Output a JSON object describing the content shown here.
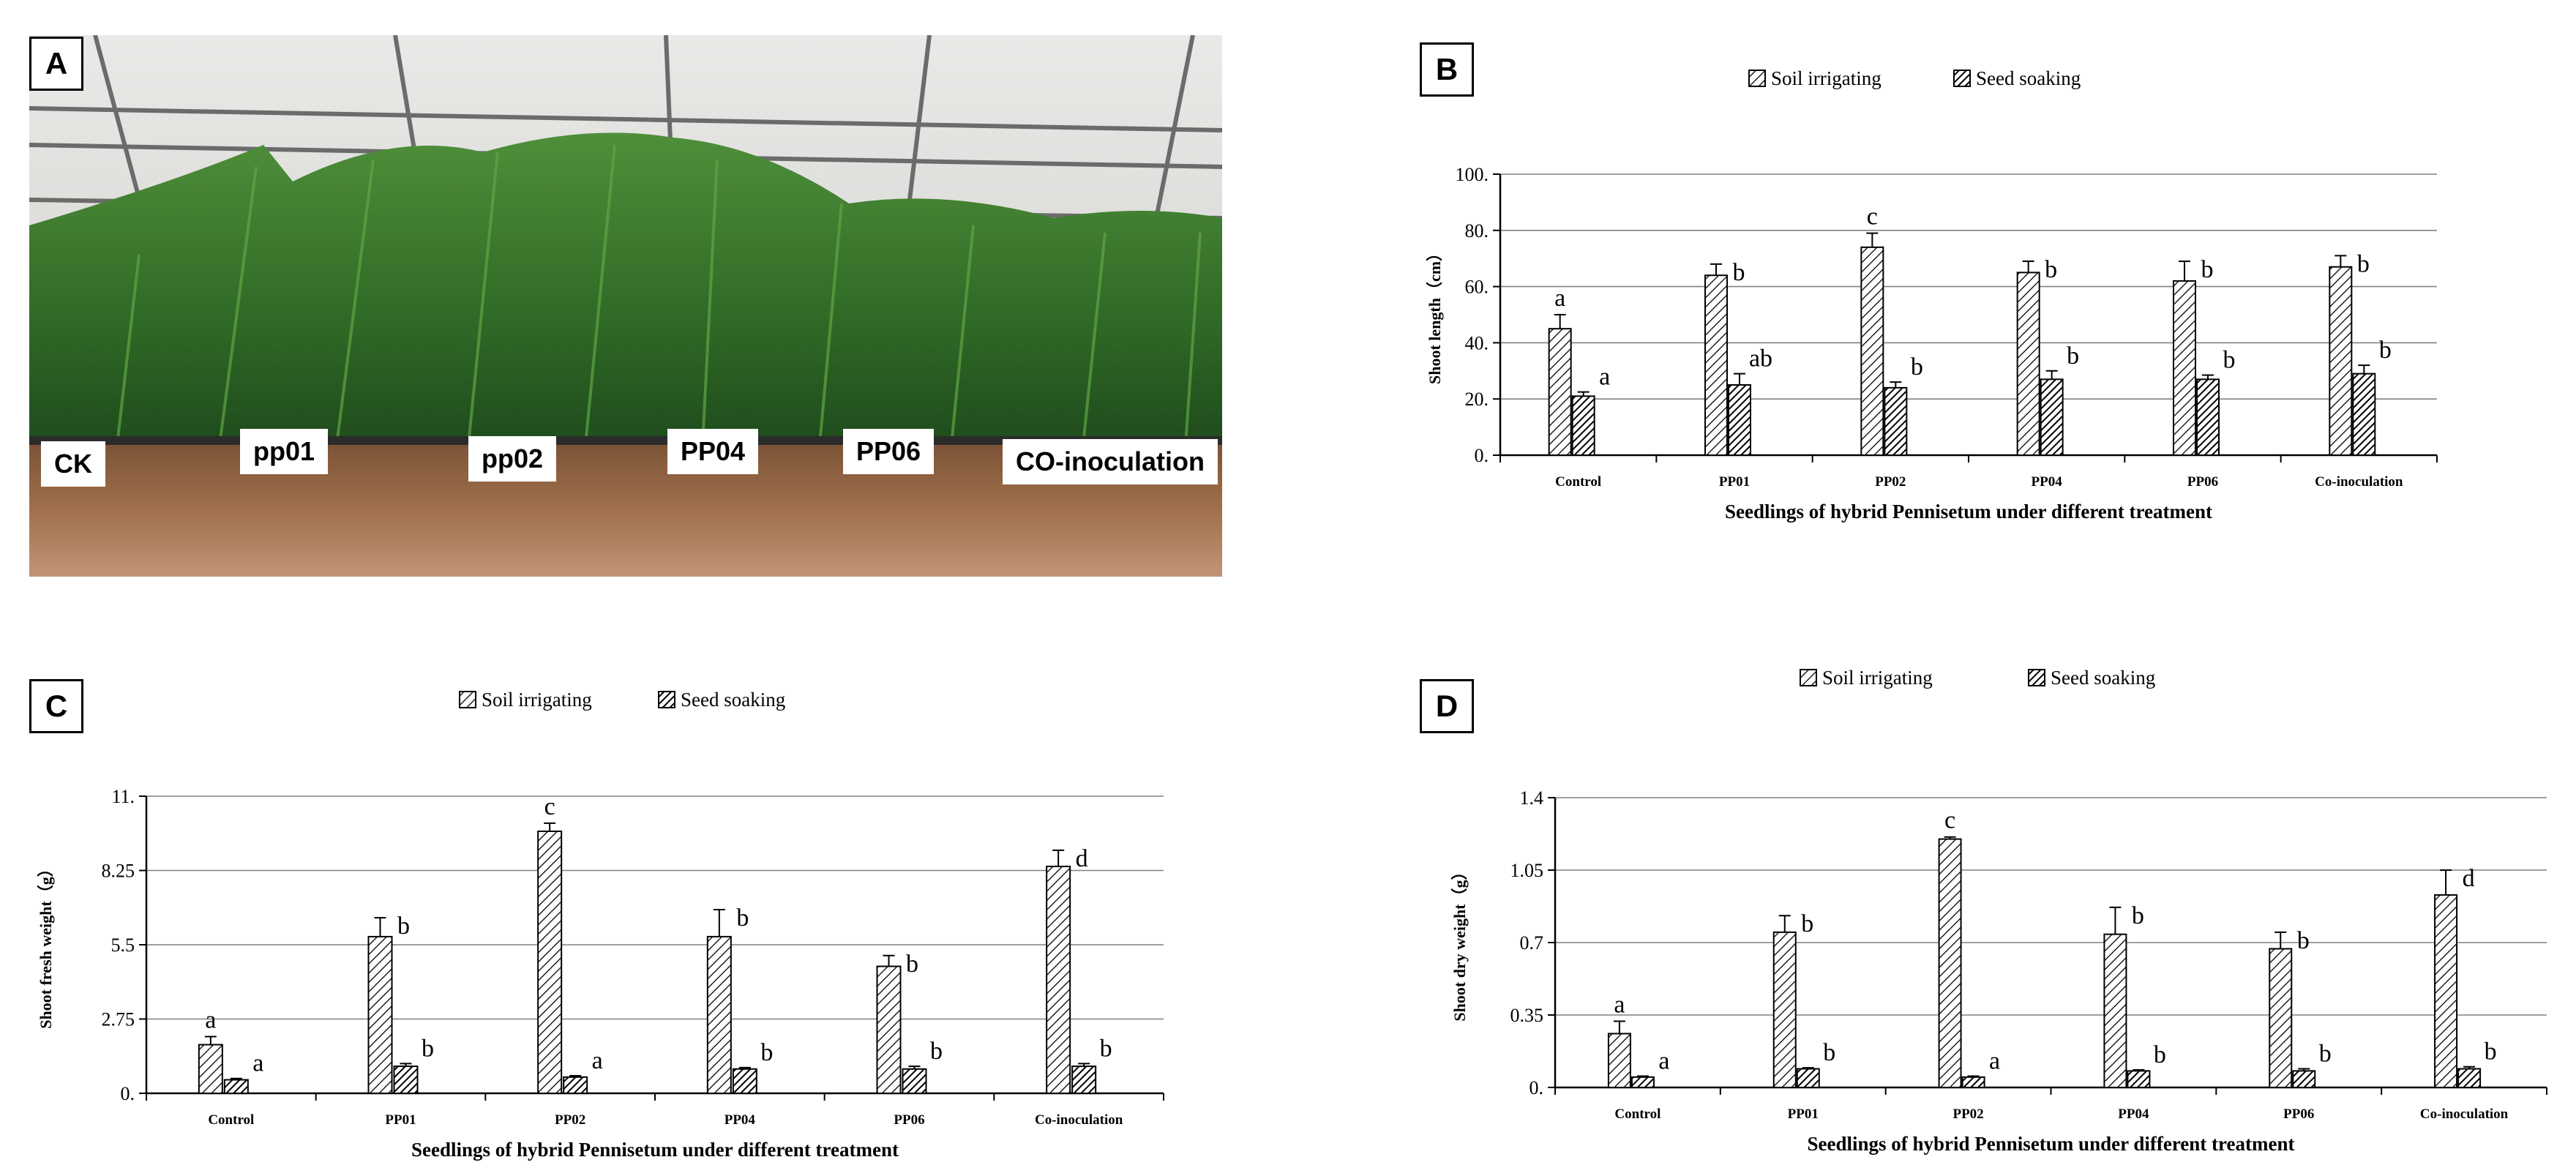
{
  "panels": {
    "a": {
      "label": "A"
    },
    "b": {
      "label": "B"
    },
    "c": {
      "label": "C"
    },
    "d": {
      "label": "D"
    }
  },
  "photo": {
    "labels": [
      "CK",
      "pp01",
      "pp02",
      "PP04",
      "PP06",
      "CO-inoculation"
    ]
  },
  "colors": {
    "bar_fill": "#ffffff",
    "bar_stroke": "#000000",
    "grid": "#808080"
  },
  "chart_data": [
    {
      "id": "B",
      "type": "bar",
      "title": "",
      "xlabel": "Seedlings of hybrid Pennisetum under different treatment",
      "ylabel": "Shoot length（cm）",
      "categories": [
        "Control",
        "PP01",
        "PP02",
        "PP04",
        "PP06",
        "Co-inoculation"
      ],
      "ylim": [
        0,
        100
      ],
      "yticks": [
        "0.",
        "20.",
        "40.",
        "60.",
        "80.",
        "100."
      ],
      "ytick_values": [
        0,
        20,
        40,
        60,
        80,
        100
      ],
      "legend": [
        "Soil irrigating",
        "Seed soaking"
      ],
      "series": [
        {
          "name": "Soil irrigating",
          "values": [
            45,
            64,
            74,
            65,
            62,
            67
          ],
          "errors": [
            5,
            4,
            5,
            4,
            7,
            4
          ],
          "letters": [
            "a",
            "b",
            "c",
            "b",
            "b",
            "b"
          ]
        },
        {
          "name": "Seed soaking",
          "values": [
            21,
            25,
            24,
            27,
            27,
            29
          ],
          "errors": [
            1.5,
            4,
            2,
            3,
            1.5,
            3
          ],
          "letters": [
            "a",
            "ab",
            "b",
            "b",
            "b",
            "b"
          ]
        }
      ]
    },
    {
      "id": "C",
      "type": "bar",
      "title": "",
      "xlabel": "Seedlings of hybrid Pennisetum under different treatment",
      "ylabel": "Shoot fresh weight（g）",
      "categories": [
        "Control",
        "PP01",
        "PP02",
        "PP04",
        "PP06",
        "Co-inoculation"
      ],
      "ylim": [
        0,
        11
      ],
      "yticks": [
        "0.",
        "2.75",
        "5.5",
        "8.25",
        "11."
      ],
      "ytick_values": [
        0,
        2.75,
        5.5,
        8.25,
        11
      ],
      "legend": [
        "Soil irrigating",
        "Seed soaking"
      ],
      "series": [
        {
          "name": "Soil irrigating",
          "values": [
            1.8,
            5.8,
            9.7,
            5.8,
            4.7,
            8.4
          ],
          "errors": [
            0.3,
            0.7,
            0.3,
            1.0,
            0.4,
            0.6
          ],
          "letters": [
            "a",
            "b",
            "c",
            "b",
            "b",
            "d"
          ]
        },
        {
          "name": "Seed soaking",
          "values": [
            0.5,
            1.0,
            0.6,
            0.9,
            0.9,
            1.0
          ],
          "errors": [
            0.05,
            0.1,
            0.05,
            0.05,
            0.1,
            0.1
          ],
          "letters": [
            "a",
            "b",
            "a",
            "b",
            "b",
            "b"
          ]
        }
      ]
    },
    {
      "id": "D",
      "type": "bar",
      "title": "",
      "xlabel": "Seedlings of hybrid Pennisetum under different treatment",
      "ylabel": "Shoot dry weight（g）",
      "categories": [
        "Control",
        "PP01",
        "PP02",
        "PP04",
        "PP06",
        "Co-inoculation"
      ],
      "ylim": [
        0,
        1.4
      ],
      "yticks": [
        "0.",
        "0.35",
        "0.7",
        "1.05",
        "1.4"
      ],
      "ytick_values": [
        0,
        0.35,
        0.7,
        1.05,
        1.4
      ],
      "legend": [
        "Soil irrigating",
        "Seed soaking"
      ],
      "series": [
        {
          "name": "Soil irrigating",
          "values": [
            0.26,
            0.75,
            1.2,
            0.74,
            0.67,
            0.93
          ],
          "errors": [
            0.06,
            0.08,
            0.01,
            0.13,
            0.08,
            0.12
          ],
          "letters": [
            "a",
            "b",
            "c",
            "b",
            "b",
            "d"
          ]
        },
        {
          "name": "Seed soaking",
          "values": [
            0.05,
            0.09,
            0.05,
            0.08,
            0.08,
            0.09
          ],
          "errors": [
            0.005,
            0.005,
            0.005,
            0.005,
            0.01,
            0.01
          ],
          "letters": [
            "a",
            "b",
            "a",
            "b",
            "b",
            "b"
          ]
        }
      ]
    }
  ]
}
